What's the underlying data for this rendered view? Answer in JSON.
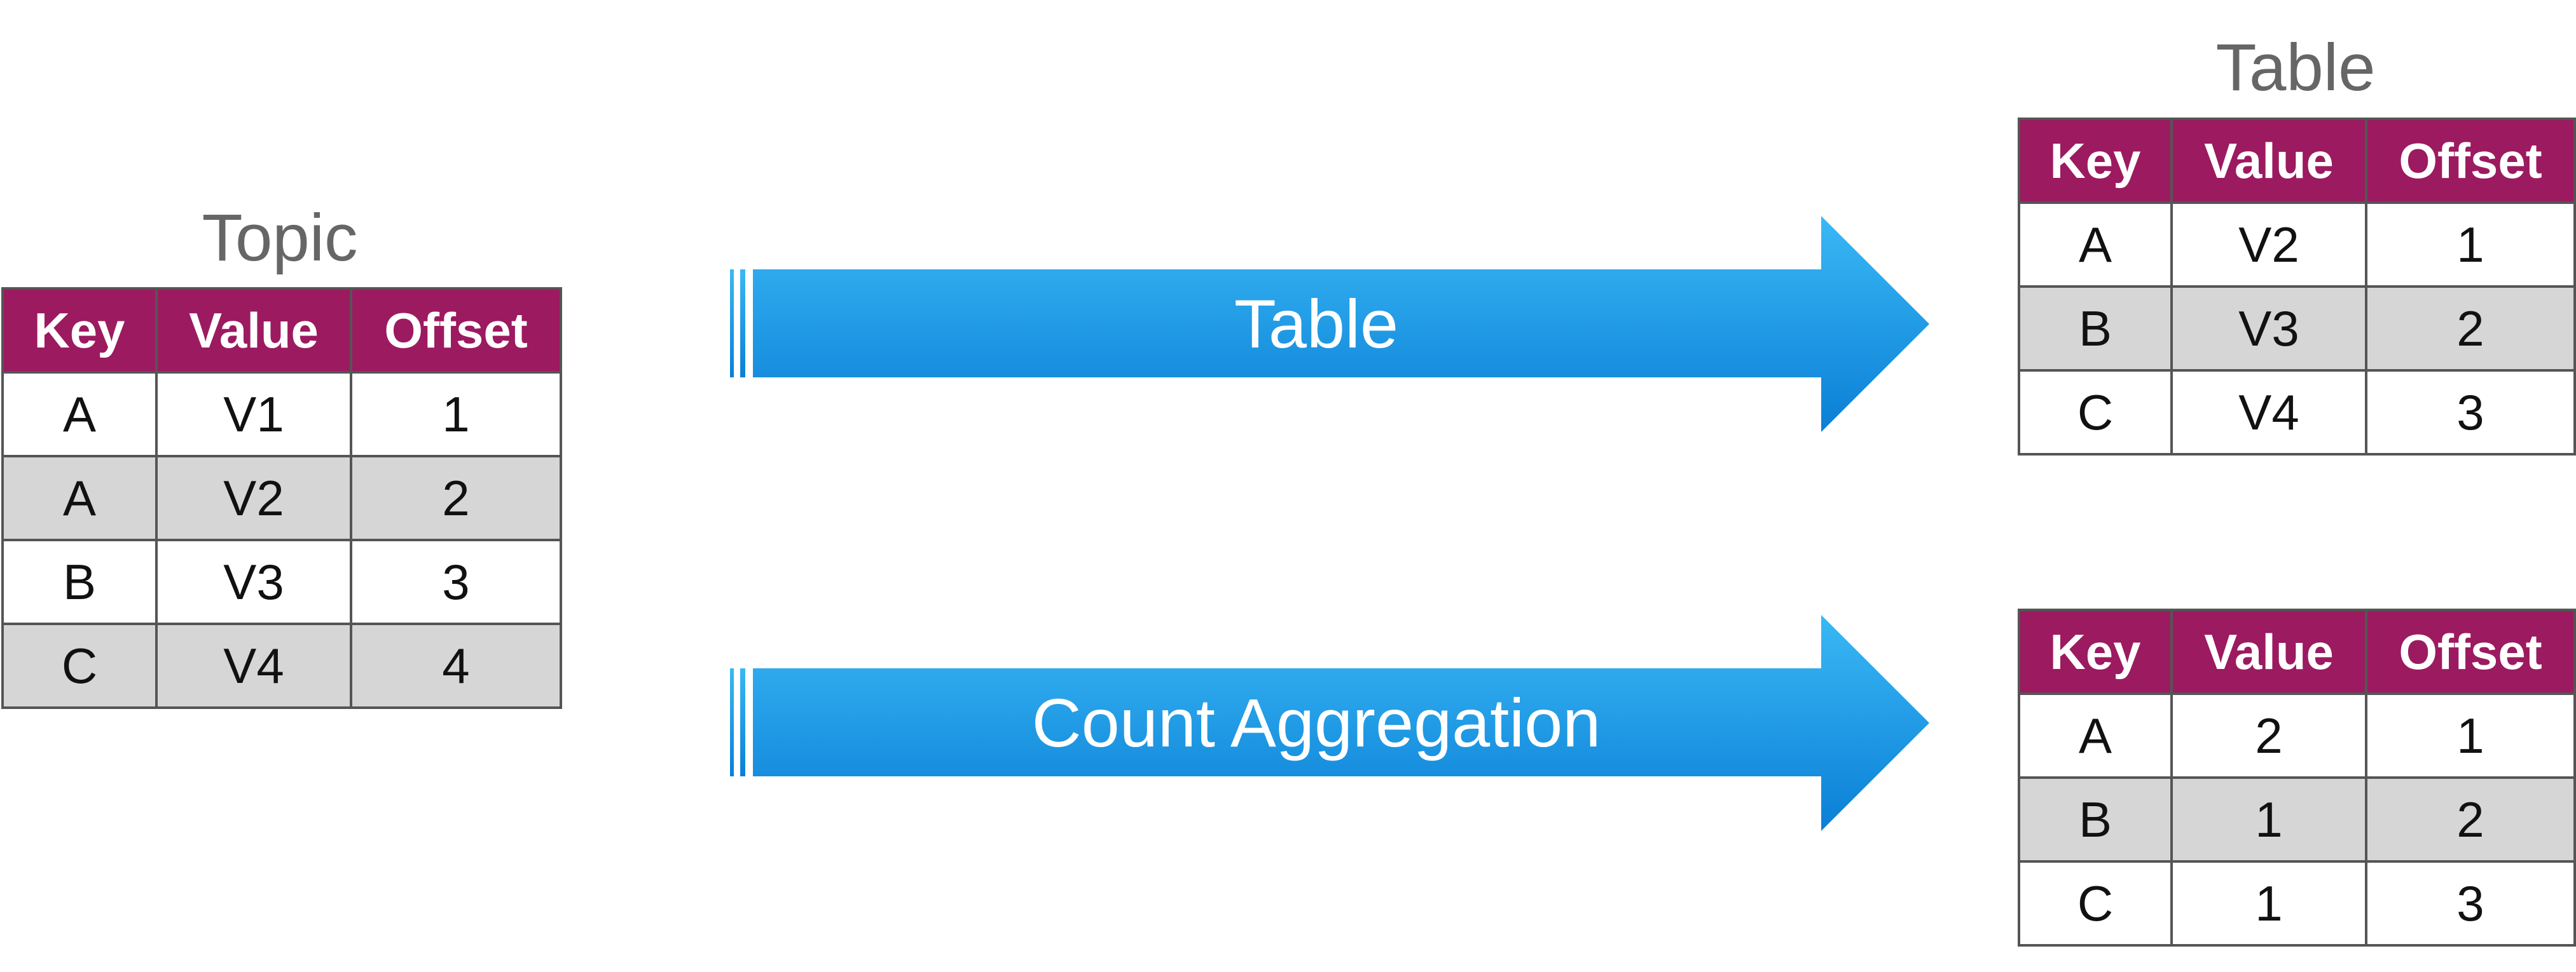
{
  "topic": {
    "caption": "Topic",
    "headers": [
      "Key",
      "Value",
      "Offset"
    ],
    "rows": [
      [
        "A",
        "V1",
        "1"
      ],
      [
        "A",
        "V2",
        "2"
      ],
      [
        "B",
        "V3",
        "3"
      ],
      [
        "C",
        "V4",
        "4"
      ]
    ]
  },
  "arrows": {
    "table_label": "Table",
    "count_label": "Count Aggregation"
  },
  "result_table": {
    "caption": "Table",
    "headers": [
      "Key",
      "Value",
      "Offset"
    ],
    "rows": [
      [
        "A",
        "V2",
        "1"
      ],
      [
        "B",
        "V3",
        "2"
      ],
      [
        "C",
        "V4",
        "3"
      ]
    ]
  },
  "count_table": {
    "headers": [
      "Key",
      "Value",
      "Offset"
    ],
    "rows": [
      [
        "A",
        "2",
        "1"
      ],
      [
        "B",
        "1",
        "2"
      ],
      [
        "C",
        "1",
        "3"
      ]
    ]
  },
  "colors": {
    "header_bg": "#9c1a60",
    "stripe_bg": "#d6d6d6",
    "arrow_top": "#3ab8f5",
    "arrow_bottom": "#0a7fd6"
  }
}
